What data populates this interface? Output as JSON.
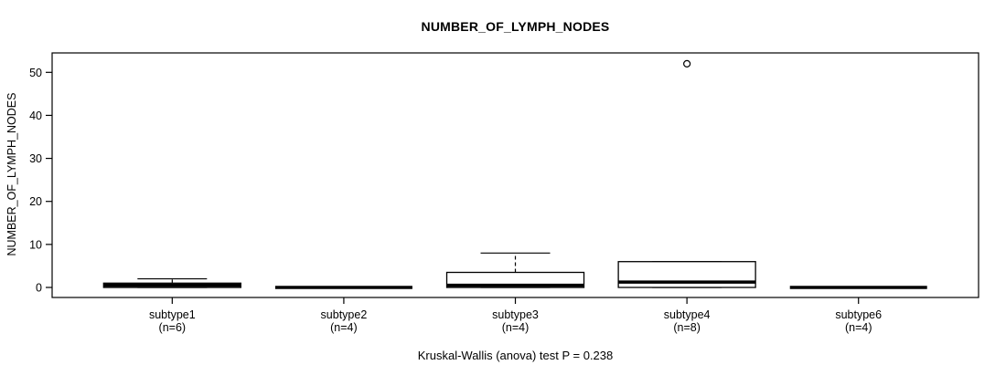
{
  "title": "NUMBER_OF_LYMPH_NODES",
  "caption": "Kruskal-Wallis (anova) test P = 0.238",
  "colors": {
    "foreground": "#000000",
    "background": "#ffffff"
  },
  "chart_data": {
    "type": "boxplot",
    "title": "NUMBER_OF_LYMPH_NODES",
    "xlabel": "",
    "ylabel": "NUMBER_OF_LYMPH_NODES",
    "footnote": "Kruskal-Wallis (anova) test P = 0.238",
    "y_ticks": [
      0,
      10,
      20,
      30,
      40,
      50
    ],
    "ylim": [
      -2.3,
      54.5
    ],
    "grid": false,
    "legend": "none",
    "groups": [
      {
        "label": "subtype1",
        "n_label": "(n=6)",
        "n": 6,
        "q1": 0,
        "median": 0.5,
        "q3": 1,
        "whisker_low": 0,
        "whisker_high": 2,
        "outliers": []
      },
      {
        "label": "subtype2",
        "n_label": "(n=4)",
        "n": 4,
        "q1": 0,
        "median": 0,
        "q3": 0,
        "whisker_low": 0,
        "whisker_high": 0,
        "outliers": []
      },
      {
        "label": "subtype3",
        "n_label": "(n=4)",
        "n": 4,
        "q1": 0,
        "median": 0.5,
        "q3": 3.5,
        "whisker_low": 0,
        "whisker_high": 8,
        "outliers": []
      },
      {
        "label": "subtype4",
        "n_label": "(n=8)",
        "n": 8,
        "q1": 0,
        "median": 1.25,
        "q3": 6,
        "whisker_low": 0,
        "whisker_high": 6,
        "outliers": [
          52
        ]
      },
      {
        "label": "subtype6",
        "n_label": "(n=4)",
        "n": 4,
        "q1": 0,
        "median": 0,
        "q3": 0,
        "whisker_low": 0,
        "whisker_high": 0,
        "outliers": []
      }
    ]
  }
}
